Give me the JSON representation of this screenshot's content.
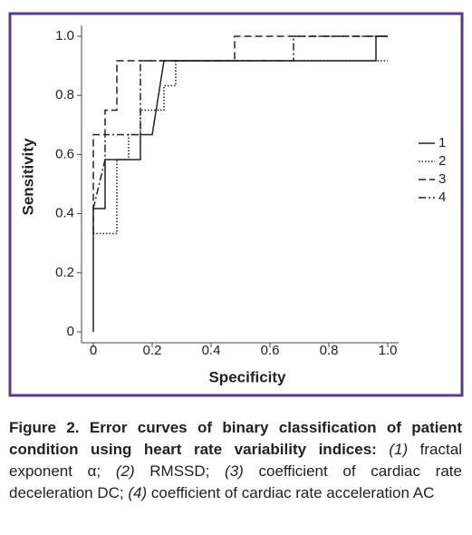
{
  "chart_data": {
    "type": "line",
    "xlabel": "Specificity",
    "ylabel": "Sensitivity",
    "xlim": [
      0,
      1
    ],
    "ylim": [
      0,
      1
    ],
    "xticks": [
      0,
      0.2,
      0.4,
      0.6,
      0.8,
      {
        "value": 1,
        "label": "1.0"
      }
    ],
    "yticks": [
      0,
      0.2,
      0.4,
      0.6,
      0.8,
      {
        "value": 1,
        "label": "1.0"
      }
    ],
    "legend": "right",
    "series": [
      {
        "name": "1",
        "color": "#222222",
        "style": "solid",
        "x": [
          0,
          0,
          0.04,
          0.04,
          0.16,
          0.16,
          0.2,
          0.24,
          0.96,
          0.96,
          1.0
        ],
        "values": [
          0,
          0.417,
          0.417,
          0.583,
          0.583,
          0.667,
          0.667,
          0.917,
          0.917,
          1.0,
          1.0
        ]
      },
      {
        "name": "2",
        "color": "#222222",
        "style": "dotted",
        "x": [
          0,
          0.08,
          0.08,
          0.12,
          0.12,
          0.16,
          0.16,
          0.24,
          0.24,
          0.28,
          0.28,
          1.0
        ],
        "values": [
          0.333,
          0.333,
          0.583,
          0.583,
          0.667,
          0.667,
          0.75,
          0.75,
          0.833,
          0.833,
          0.917,
          0.917
        ]
      },
      {
        "name": "3",
        "color": "#222222",
        "style": "dashed",
        "x": [
          0,
          0,
          0.04,
          0.04,
          0.08,
          0.08,
          0.48,
          0.48,
          1.0
        ],
        "values": [
          0.333,
          0.667,
          0.667,
          0.75,
          0.75,
          0.917,
          0.917,
          1.0,
          1.0
        ]
      },
      {
        "name": "4",
        "color": "#222222",
        "style": "dashdot",
        "x": [
          0,
          0.02,
          0.04,
          0.04,
          0.16,
          0.16,
          0.68,
          0.68,
          1.0
        ],
        "values": [
          0.417,
          0.5,
          0.583,
          0.667,
          0.667,
          0.917,
          0.917,
          1.0,
          1.0
        ]
      }
    ]
  },
  "caption": {
    "title": "Figure 2. Error curves of binary classification of patient condition using heart rate variability indices:",
    "items": [
      {
        "number": "(1)",
        "text": "fractal exponent α;"
      },
      {
        "number": "(2)",
        "text": "RMSSD;"
      },
      {
        "number": "(3)",
        "text": "coefficient of cardiac rate deceleration DC;"
      },
      {
        "number": "(4)",
        "text": "coefficient of cardiac rate acceleration AC"
      }
    ]
  }
}
